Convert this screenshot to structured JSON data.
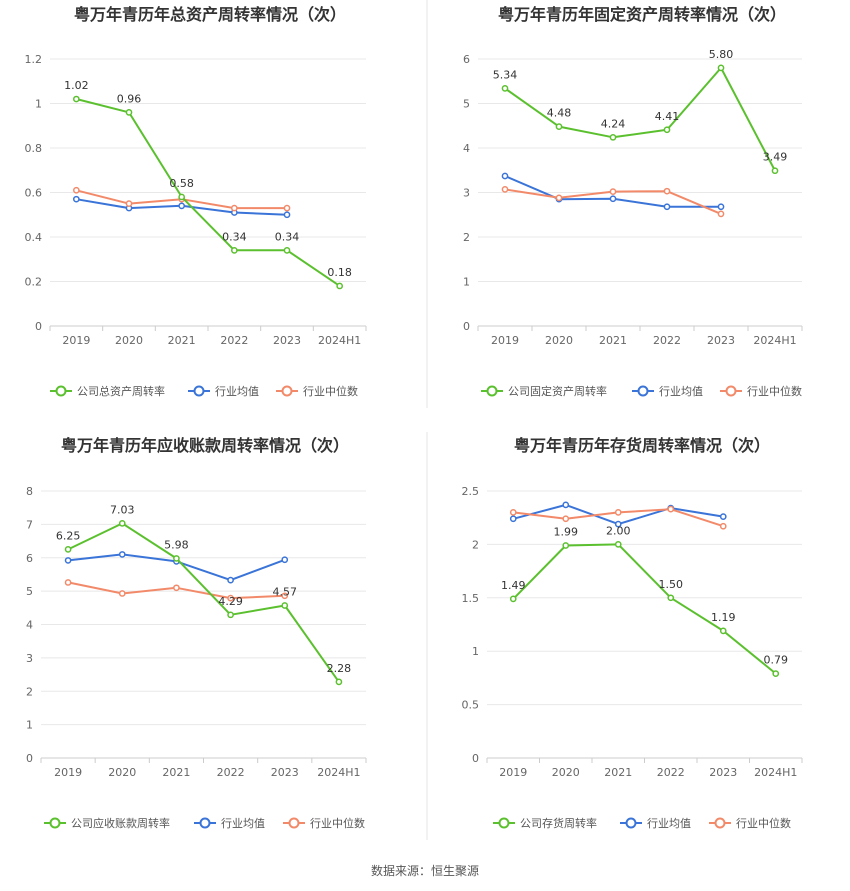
{
  "colors": {
    "company": "#5bc02e",
    "avg": "#3a74d8",
    "median": "#f28a6a"
  },
  "legend": {
    "avg": "行业均值",
    "median": "行业中位数"
  },
  "source": "数据来源：恒生聚源",
  "chart_data": [
    {
      "type": "line",
      "title": "粤万年青历年总资产周转率情况（次）",
      "categories": [
        "2019",
        "2020",
        "2021",
        "2022",
        "2023",
        "2024H1"
      ],
      "ylim": [
        0,
        1.2
      ],
      "yticks": [
        "0",
        "0.2",
        "0.4",
        "0.6",
        "0.8",
        "1",
        "1.2"
      ],
      "series": [
        {
          "name": "公司总资产周转率",
          "key": "company",
          "values": [
            1.02,
            0.96,
            0.58,
            0.34,
            0.34,
            0.18
          ],
          "labels": [
            "1.02",
            "0.96",
            "0.58",
            "0.34",
            "0.34",
            "0.18"
          ]
        },
        {
          "name": "行业均值",
          "key": "avg",
          "values": [
            0.57,
            0.53,
            0.54,
            0.51,
            0.5,
            null
          ]
        },
        {
          "name": "行业中位数",
          "key": "median",
          "values": [
            0.61,
            0.55,
            0.57,
            0.53,
            0.53,
            null
          ]
        }
      ]
    },
    {
      "type": "line",
      "title": "粤万年青历年固定资产周转率情况（次）",
      "categories": [
        "2019",
        "2020",
        "2021",
        "2022",
        "2023",
        "2024H1"
      ],
      "ylim": [
        0,
        6
      ],
      "yticks": [
        "0",
        "1",
        "2",
        "3",
        "4",
        "5",
        "6"
      ],
      "series": [
        {
          "name": "公司固定资产周转率",
          "key": "company",
          "values": [
            5.34,
            4.48,
            4.24,
            4.41,
            5.8,
            3.49
          ],
          "labels": [
            "5.34",
            "4.48",
            "4.24",
            "4.41",
            "5.80",
            "3.49"
          ]
        },
        {
          "name": "行业均值",
          "key": "avg",
          "values": [
            3.37,
            2.85,
            2.86,
            2.68,
            2.68,
            null
          ]
        },
        {
          "name": "行业中位数",
          "key": "median",
          "values": [
            3.07,
            2.88,
            3.02,
            3.03,
            2.52,
            null
          ]
        }
      ]
    },
    {
      "type": "line",
      "title": "粤万年青历年应收账款周转率情况（次）",
      "categories": [
        "2019",
        "2020",
        "2021",
        "2022",
        "2023",
        "2024H1"
      ],
      "ylim": [
        0,
        8
      ],
      "yticks": [
        "0",
        "1",
        "2",
        "3",
        "4",
        "5",
        "6",
        "7",
        "8"
      ],
      "series": [
        {
          "name": "公司应收账款周转率",
          "key": "company",
          "values": [
            6.25,
            7.03,
            5.98,
            4.29,
            4.57,
            2.28
          ],
          "labels": [
            "6.25",
            "7.03",
            "5.98",
            "4.29",
            "4.57",
            "2.28"
          ]
        },
        {
          "name": "行业均值",
          "key": "avg",
          "values": [
            5.92,
            6.1,
            5.89,
            5.33,
            5.94,
            null
          ]
        },
        {
          "name": "行业中位数",
          "key": "median",
          "values": [
            5.26,
            4.93,
            5.1,
            4.79,
            4.86,
            null
          ]
        }
      ]
    },
    {
      "type": "line",
      "title": "粤万年青历年存货周转率情况（次）",
      "categories": [
        "2019",
        "2020",
        "2021",
        "2022",
        "2023",
        "2024H1"
      ],
      "ylim": [
        0,
        2.5
      ],
      "yticks": [
        "0",
        "0.5",
        "1",
        "1.5",
        "2",
        "2.5"
      ],
      "series": [
        {
          "name": "公司存货周转率",
          "key": "company",
          "values": [
            1.49,
            1.99,
            2.0,
            1.5,
            1.19,
            0.79
          ],
          "labels": [
            "1.49",
            "1.99",
            "2.00",
            "1.50",
            "1.19",
            "0.79"
          ]
        },
        {
          "name": "行业均值",
          "key": "avg",
          "values": [
            2.24,
            2.37,
            2.19,
            2.34,
            2.26,
            null
          ]
        },
        {
          "name": "行业中位数",
          "key": "median",
          "values": [
            2.3,
            2.24,
            2.3,
            2.33,
            2.17,
            null
          ]
        }
      ]
    }
  ]
}
